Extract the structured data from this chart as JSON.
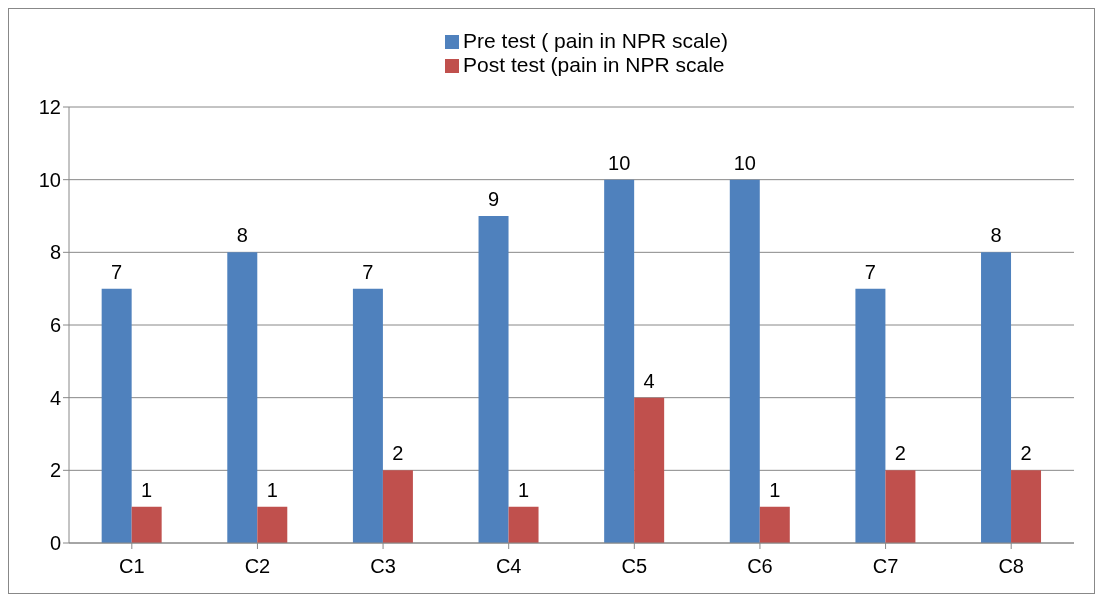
{
  "chart_data": {
    "type": "bar",
    "categories": [
      "C1",
      "C2",
      "C3",
      "C4",
      "C5",
      "C6",
      "C7",
      "C8"
    ],
    "series": [
      {
        "name": "Pre test ( pain in NPR scale)",
        "color": "#4f81bd",
        "values": [
          7,
          8,
          7,
          9,
          10,
          10,
          7,
          8
        ]
      },
      {
        "name": "Post test (pain in NPR scale",
        "color": "#c0504d",
        "values": [
          1,
          1,
          2,
          1,
          4,
          1,
          2,
          2
        ]
      }
    ],
    "ylim": [
      0,
      12
    ],
    "yticks": [
      0,
      2,
      4,
      6,
      8,
      10,
      12
    ],
    "grid": "y",
    "legend": "top",
    "data_labels": true
  }
}
